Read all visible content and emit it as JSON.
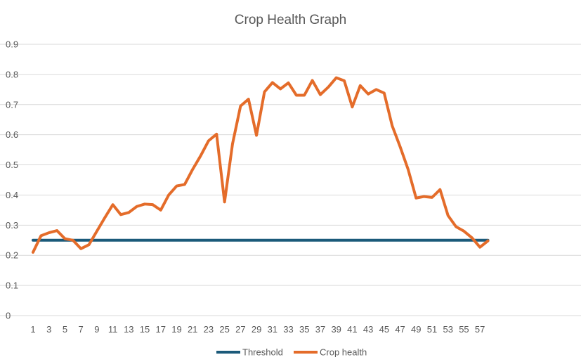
{
  "chart_data": {
    "type": "line",
    "title": "Crop Health Graph",
    "xlabel": "",
    "ylabel": "",
    "ylim": [
      0,
      0.9
    ],
    "yticks": [
      "0",
      "0.1",
      "0.2",
      "0.3",
      "0.4",
      "0.5",
      "0.6",
      "0.7",
      "0.8",
      "0.9"
    ],
    "x": [
      1,
      2,
      3,
      4,
      5,
      6,
      7,
      8,
      9,
      10,
      11,
      12,
      13,
      14,
      15,
      16,
      17,
      18,
      19,
      20,
      21,
      22,
      23,
      24,
      25,
      26,
      27,
      28,
      29,
      30,
      31,
      32,
      33,
      34,
      35,
      36,
      37,
      38,
      39,
      40,
      41,
      42,
      43,
      44,
      45,
      46,
      47,
      48,
      49,
      50,
      51,
      52,
      53,
      54,
      55,
      56,
      57,
      58
    ],
    "xtick_labels": [
      "1",
      "3",
      "5",
      "7",
      "9",
      "11",
      "13",
      "15",
      "17",
      "19",
      "21",
      "23",
      "25",
      "27",
      "29",
      "31",
      "33",
      "35",
      "37",
      "39",
      "41",
      "43",
      "45",
      "47",
      "49",
      "51",
      "53",
      "55",
      "57"
    ],
    "grid": true,
    "legend_position": "bottom",
    "series": [
      {
        "name": "Threshold",
        "color": "#1b5a7a",
        "values": [
          0.25,
          0.25,
          0.25,
          0.25,
          0.25,
          0.25,
          0.25,
          0.25,
          0.25,
          0.25,
          0.25,
          0.25,
          0.25,
          0.25,
          0.25,
          0.25,
          0.25,
          0.25,
          0.25,
          0.25,
          0.25,
          0.25,
          0.25,
          0.25,
          0.25,
          0.25,
          0.25,
          0.25,
          0.25,
          0.25,
          0.25,
          0.25,
          0.25,
          0.25,
          0.25,
          0.25,
          0.25,
          0.25,
          0.25,
          0.25,
          0.25,
          0.25,
          0.25,
          0.25,
          0.25,
          0.25,
          0.25,
          0.25,
          0.25,
          0.25,
          0.25,
          0.25,
          0.25,
          0.25,
          0.25,
          0.25,
          0.25,
          0.25
        ]
      },
      {
        "name": "Crop health",
        "color": "#e46c2a",
        "values": [
          0.21,
          0.265,
          0.275,
          0.282,
          0.255,
          0.25,
          0.222,
          0.235,
          0.28,
          0.325,
          0.368,
          0.335,
          0.342,
          0.362,
          0.37,
          0.368,
          0.35,
          0.4,
          0.43,
          0.435,
          0.485,
          0.53,
          0.58,
          0.602,
          0.377,
          0.57,
          0.695,
          0.718,
          0.598,
          0.742,
          0.773,
          0.752,
          0.772,
          0.731,
          0.731,
          0.78,
          0.733,
          0.758,
          0.789,
          0.779,
          0.692,
          0.763,
          0.735,
          0.75,
          0.738,
          0.63,
          0.56,
          0.485,
          0.39,
          0.395,
          0.392,
          0.418,
          0.332,
          0.295,
          0.28,
          0.258,
          0.227,
          0.248
        ]
      }
    ]
  }
}
